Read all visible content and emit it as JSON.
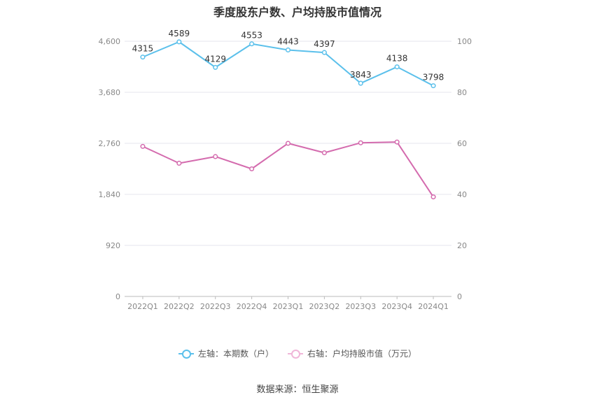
{
  "page": {
    "title": "季度股东户数、户均持股市值情况",
    "source": "数据来源：恒生聚源"
  },
  "legend": {
    "left": "左轴：本期数（户）",
    "right": "右轴：户均持股市值（万元）"
  },
  "colors": {
    "left_series": "#5BC0EB",
    "right_series": "#D46BAE",
    "grid": "#E6E6EE",
    "axis_text": "#888888"
  },
  "chart_data": {
    "type": "line",
    "categories": [
      "2022Q1",
      "2022Q2",
      "2022Q3",
      "2022Q4",
      "2023Q1",
      "2023Q2",
      "2023Q3",
      "2023Q4",
      "2024Q1"
    ],
    "left_axis": {
      "ticks": [
        0,
        920,
        1840,
        2760,
        3680,
        4600
      ],
      "tick_labels": [
        "0",
        "920",
        "1,840",
        "2,760",
        "3,680",
        "4,600"
      ],
      "ylim": [
        0,
        4600
      ]
    },
    "right_axis": {
      "ticks": [
        0,
        20,
        40,
        60,
        80,
        100
      ],
      "tick_labels": [
        "0",
        "20",
        "40",
        "60",
        "80",
        "100"
      ],
      "ylim": [
        0,
        100
      ]
    },
    "series": [
      {
        "name": "左轴：本期数（户）",
        "axis": "left",
        "values": [
          4315,
          4589,
          4129,
          4553,
          4443,
          4397,
          3843,
          4138,
          3798
        ],
        "labels": [
          "4315",
          "4589",
          "4129",
          "4553",
          "4443",
          "4397",
          "3843",
          "4138",
          "3798"
        ]
      },
      {
        "name": "右轴：户均持股市值（万元）",
        "axis": "right",
        "values": [
          58.8,
          52.2,
          54.8,
          50.0,
          60.0,
          56.3,
          60.2,
          60.5,
          39.0
        ]
      }
    ],
    "grid": true,
    "legend_position": "bottom"
  }
}
